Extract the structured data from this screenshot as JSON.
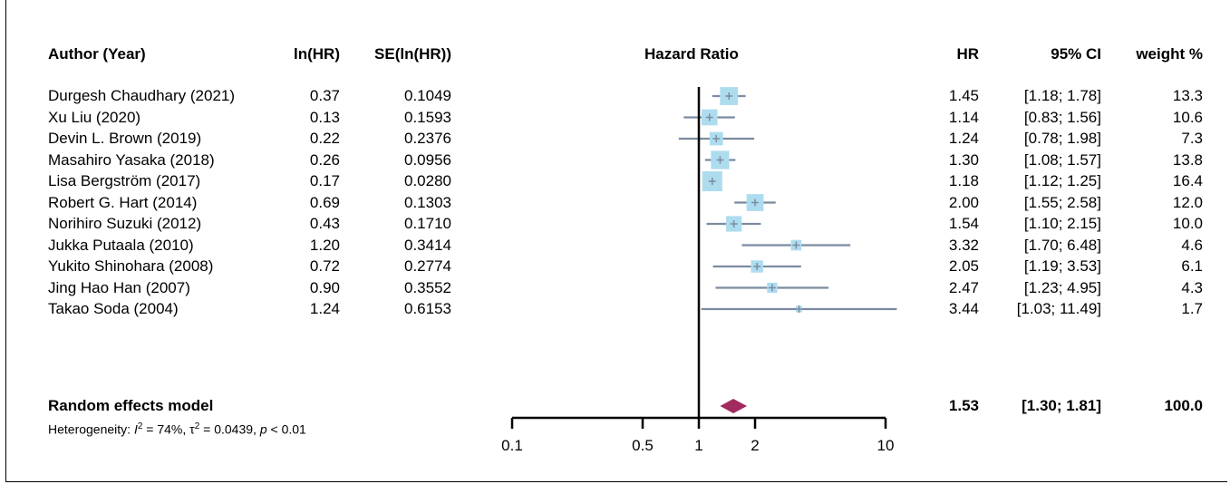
{
  "chart_data": {
    "type": "forest",
    "headers": {
      "author": "Author (Year)",
      "lnhr": "ln(HR)",
      "se": "SE(ln(HR))",
      "plot_title": "Hazard Ratio",
      "hr": "HR",
      "ci": "95% CI",
      "weight": "weight %"
    },
    "studies": [
      {
        "author": "Durgesh Chaudhary (2021)",
        "lnhr": "0.37",
        "se": "0.1049",
        "hr": 1.45,
        "lo": 1.18,
        "hi": 1.78,
        "hr_text": "1.45",
        "ci_text": "[1.18;  1.78]",
        "weight": 13.3,
        "weight_text": "13.3"
      },
      {
        "author": "Xu Liu (2020)",
        "lnhr": "0.13",
        "se": "0.1593",
        "hr": 1.14,
        "lo": 0.83,
        "hi": 1.56,
        "hr_text": "1.14",
        "ci_text": "[0.83;  1.56]",
        "weight": 10.6,
        "weight_text": "10.6"
      },
      {
        "author": "Devin L. Brown (2019)",
        "lnhr": "0.22",
        "se": "0.2376",
        "hr": 1.24,
        "lo": 0.78,
        "hi": 1.98,
        "hr_text": "1.24",
        "ci_text": "[0.78;  1.98]",
        "weight": 7.3,
        "weight_text": "7.3"
      },
      {
        "author": "Masahiro Yasaka (2018)",
        "lnhr": "0.26",
        "se": "0.0956",
        "hr": 1.3,
        "lo": 1.08,
        "hi": 1.57,
        "hr_text": "1.30",
        "ci_text": "[1.08;  1.57]",
        "weight": 13.8,
        "weight_text": "13.8"
      },
      {
        "author": "Lisa Bergström (2017)",
        "lnhr": "0.17",
        "se": "0.0280",
        "hr": 1.18,
        "lo": 1.12,
        "hi": 1.25,
        "hr_text": "1.18",
        "ci_text": "[1.12;  1.25]",
        "weight": 16.4,
        "weight_text": "16.4"
      },
      {
        "author": "Robert G. Hart (2014)",
        "lnhr": "0.69",
        "se": "0.1303",
        "hr": 2.0,
        "lo": 1.55,
        "hi": 2.58,
        "hr_text": "2.00",
        "ci_text": "[1.55;  2.58]",
        "weight": 12.0,
        "weight_text": "12.0"
      },
      {
        "author": "Norihiro Suzuki (2012)",
        "lnhr": "0.43",
        "se": "0.1710",
        "hr": 1.54,
        "lo": 1.1,
        "hi": 2.15,
        "hr_text": "1.54",
        "ci_text": "[1.10;  2.15]",
        "weight": 10.0,
        "weight_text": "10.0"
      },
      {
        "author": "Jukka Putaala (2010)",
        "lnhr": "1.20",
        "se": "0.3414",
        "hr": 3.32,
        "lo": 1.7,
        "hi": 6.48,
        "hr_text": "3.32",
        "ci_text": "[1.70;  6.48]",
        "weight": 4.6,
        "weight_text": "4.6"
      },
      {
        "author": "Yukito Shinohara (2008)",
        "lnhr": "0.72",
        "se": "0.2774",
        "hr": 2.05,
        "lo": 1.19,
        "hi": 3.53,
        "hr_text": "2.05",
        "ci_text": "[1.19;  3.53]",
        "weight": 6.1,
        "weight_text": "6.1"
      },
      {
        "author": "Jing Hao Han (2007)",
        "lnhr": "0.90",
        "se": "0.3552",
        "hr": 2.47,
        "lo": 1.23,
        "hi": 4.95,
        "hr_text": "2.47",
        "ci_text": "[1.23;  4.95]",
        "weight": 4.3,
        "weight_text": "4.3"
      },
      {
        "author": "Takao Soda (2004)",
        "lnhr": "1.24",
        "se": "0.6153",
        "hr": 3.44,
        "lo": 1.03,
        "hi": 11.49,
        "hr_text": "3.44",
        "ci_text": "[1.03; 11.49]",
        "weight": 1.7,
        "weight_text": "1.7"
      }
    ],
    "pooled": {
      "label": "Random effects model",
      "hr": 1.53,
      "lo": 1.3,
      "hi": 1.81,
      "hr_text": "1.53",
      "ci_text": "[1.30;  1.81]",
      "weight_text": "100.0"
    },
    "heterogeneity": {
      "prefix": "Heterogeneity: ",
      "i2_symbol": "I",
      "i2_sup": "2",
      "i2_value": " = 74%, ",
      "tau2_symbol": "τ",
      "tau2_sup": "2",
      "tau2_value": " = 0.0439, ",
      "p_symbol": "p",
      "p_value": " < 0.01"
    },
    "x_axis": {
      "scale": "log",
      "range": [
        0.1,
        10
      ],
      "ticks": [
        0.1,
        0.5,
        1,
        2,
        10
      ],
      "tick_labels": [
        "0.1",
        "0.5",
        "1",
        "2",
        "10"
      ],
      "null_line": 1
    },
    "colors": {
      "box": "#aedcef",
      "ci_line": "#7b8ba0",
      "diamond": "#a12a5e",
      "axis": "#000000"
    }
  }
}
